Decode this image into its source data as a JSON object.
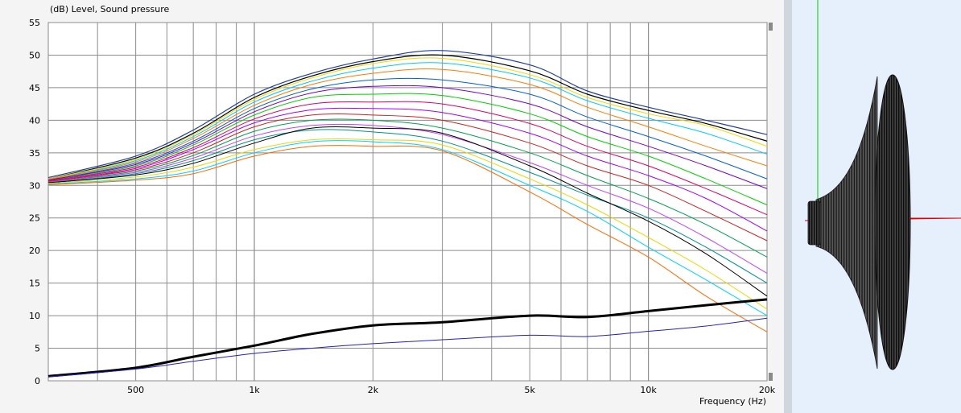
{
  "chart_data": {
    "type": "line",
    "ylabel": "(dB)  Level, Sound pressure",
    "xlabel": "Frequency  (Hz)",
    "x_scale": "log",
    "xlim": [
      300,
      20000
    ],
    "ylim": [
      0,
      55
    ],
    "grid": true,
    "yticks": [
      "0",
      "5",
      "10",
      "15",
      "20",
      "25",
      "30",
      "35",
      "40",
      "45",
      "50",
      "55"
    ],
    "xticks": [
      {
        "value": 500,
        "label": "500"
      },
      {
        "value": 1000,
        "label": "1k"
      },
      {
        "value": 2000,
        "label": "2k"
      },
      {
        "value": 5000,
        "label": "5k"
      },
      {
        "value": 10000,
        "label": "10k"
      },
      {
        "value": 20000,
        "label": "20k"
      }
    ],
    "x": [
      300,
      500,
      700,
      1000,
      1400,
      2000,
      3000,
      5000,
      7000,
      10000,
      14000,
      20000
    ],
    "series": [
      {
        "color": "#1f3f9f",
        "width": 1.2,
        "values": [
          31.2,
          34.5,
          38.5,
          44.0,
          47.2,
          49.4,
          50.7,
          48.5,
          44.5,
          42.0,
          40.0,
          37.8
        ]
      },
      {
        "color": "#000000",
        "width": 1.2,
        "values": [
          31.0,
          34.2,
          38.0,
          43.5,
          46.8,
          49.0,
          50.0,
          47.6,
          44.0,
          41.5,
          39.5,
          36.8
        ]
      },
      {
        "color": "#f0d800",
        "width": 1.0,
        "values": [
          31.0,
          34.0,
          37.8,
          43.2,
          46.5,
          48.7,
          49.5,
          47.0,
          43.5,
          41.0,
          39.2,
          36.0
        ]
      },
      {
        "color": "#00c8ff",
        "width": 1.0,
        "values": [
          30.9,
          33.8,
          37.5,
          42.8,
          46.0,
          48.0,
          48.8,
          46.5,
          43.0,
          40.3,
          38.0,
          34.8
        ]
      },
      {
        "color": "#ff7a00",
        "width": 1.0,
        "values": [
          30.9,
          33.6,
          37.2,
          42.3,
          45.5,
          47.2,
          47.8,
          45.5,
          42.0,
          39.0,
          36.0,
          33.0
        ]
      },
      {
        "color": "#0060d8",
        "width": 1.0,
        "values": [
          30.8,
          33.4,
          36.8,
          41.8,
          44.8,
          46.2,
          46.2,
          44.0,
          40.5,
          37.5,
          34.5,
          31.0
        ]
      },
      {
        "color": "#7a00c8",
        "width": 1.0,
        "values": [
          30.8,
          33.2,
          36.5,
          41.3,
          44.2,
          45.2,
          45.0,
          42.5,
          39.0,
          36.0,
          33.0,
          29.5
        ]
      },
      {
        "color": "#00d000",
        "width": 1.0,
        "values": [
          30.7,
          33.0,
          36.2,
          40.8,
          43.5,
          44.0,
          43.8,
          41.0,
          37.5,
          34.5,
          31.0,
          27.0
        ]
      },
      {
        "color": "#e00060",
        "width": 1.0,
        "values": [
          30.7,
          32.8,
          35.8,
          40.2,
          42.5,
          42.8,
          42.5,
          39.5,
          36.0,
          33.0,
          29.5,
          25.5
        ]
      },
      {
        "color": "#a000ff",
        "width": 1.0,
        "values": [
          30.6,
          32.6,
          35.5,
          39.6,
          41.6,
          41.8,
          41.2,
          38.0,
          34.5,
          31.5,
          28.0,
          23.0
        ]
      },
      {
        "color": "#d02020",
        "width": 1.0,
        "values": [
          30.6,
          32.4,
          35.0,
          39.0,
          40.8,
          40.8,
          40.0,
          36.5,
          33.0,
          30.0,
          26.0,
          21.5
        ]
      },
      {
        "color": "#00a050",
        "width": 1.0,
        "values": [
          30.5,
          32.2,
          34.6,
          38.3,
          40.0,
          40.0,
          38.8,
          35.0,
          31.5,
          28.0,
          24.0,
          19.0
        ]
      },
      {
        "color": "#c040ff",
        "width": 1.0,
        "values": [
          30.5,
          32.0,
          34.2,
          37.6,
          39.2,
          39.2,
          37.8,
          33.5,
          30.0,
          26.5,
          22.0,
          16.5
        ]
      },
      {
        "color": "#009090",
        "width": 1.0,
        "values": [
          30.4,
          31.8,
          33.8,
          37.0,
          38.5,
          38.2,
          36.8,
          32.0,
          28.5,
          25.0,
          20.5,
          15.0
        ]
      },
      {
        "color": "#000000",
        "width": 1.0,
        "values": [
          30.4,
          31.6,
          33.4,
          36.5,
          38.8,
          38.8,
          38.0,
          33.0,
          28.8,
          24.5,
          19.5,
          13.0
        ]
      },
      {
        "color": "#e8d800",
        "width": 1.0,
        "values": [
          30.3,
          31.3,
          32.8,
          35.5,
          37.0,
          37.0,
          36.2,
          31.0,
          27.0,
          22.0,
          17.0,
          11.0
        ]
      },
      {
        "color": "#00d0ff",
        "width": 1.0,
        "values": [
          30.2,
          31.0,
          32.2,
          35.0,
          36.7,
          36.7,
          35.5,
          30.0,
          26.0,
          20.5,
          15.5,
          10.0
        ]
      },
      {
        "color": "#ff6a00",
        "width": 1.0,
        "values": [
          30.1,
          30.8,
          31.8,
          34.5,
          36.0,
          36.0,
          35.3,
          29.0,
          24.0,
          19.0,
          13.0,
          7.5
        ]
      },
      {
        "color": "#000000",
        "width": 3.0,
        "values": [
          0.7,
          2.0,
          3.7,
          5.4,
          7.2,
          8.5,
          9.0,
          10.0,
          9.8,
          10.7,
          11.6,
          12.5
        ]
      },
      {
        "color": "#2222bb",
        "width": 1.0,
        "values": [
          0.6,
          1.8,
          3.0,
          4.2,
          5.0,
          5.7,
          6.3,
          7.0,
          6.8,
          7.6,
          8.4,
          9.6
        ]
      }
    ]
  }
}
